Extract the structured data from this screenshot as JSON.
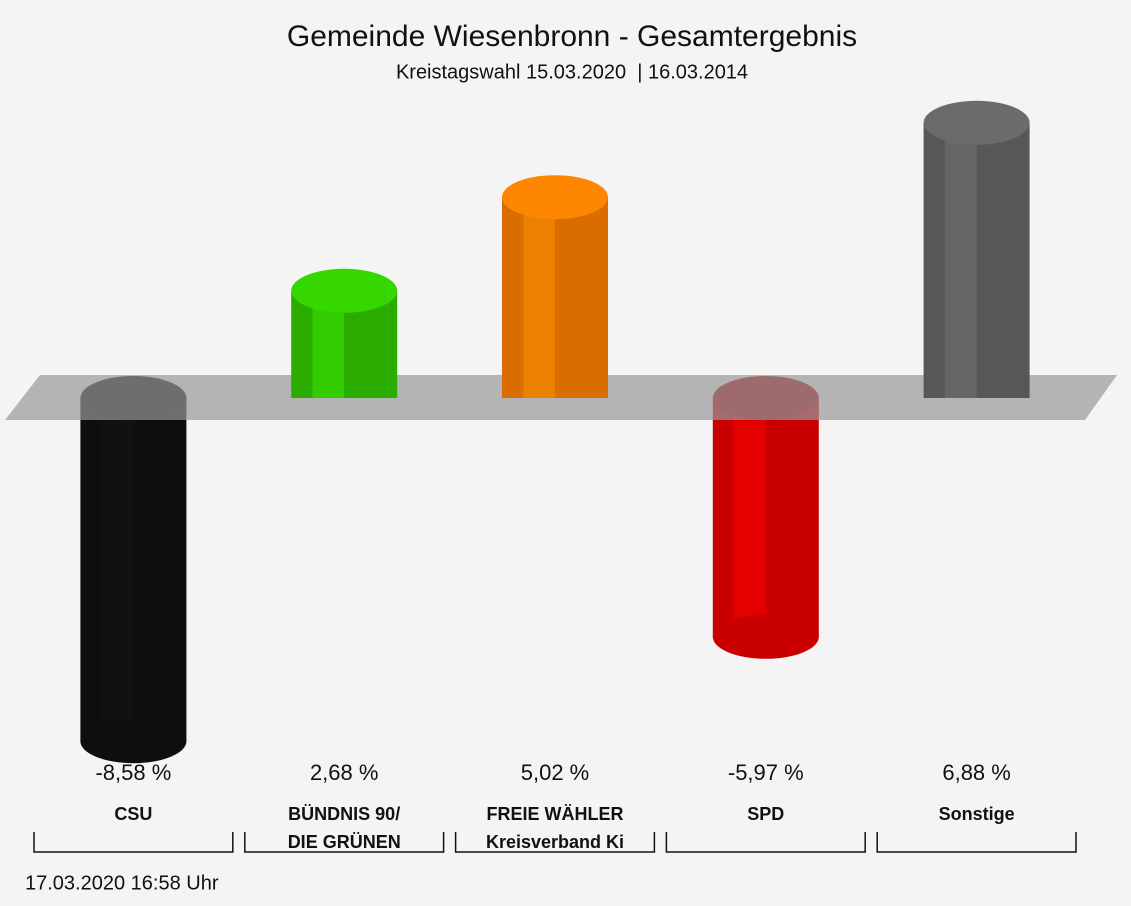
{
  "chart_data": {
    "type": "bar",
    "title": "Gemeinde Wiesenbronn - Gesamtergebnis",
    "subtitle": "Kreistagswahl 15.03.2020  | 16.03.2014",
    "categories": [
      [
        "CSU"
      ],
      [
        "BÜNDNIS 90/",
        "DIE GRÜNEN"
      ],
      [
        "FREIE WÄHLER",
        "Kreisverband Ki"
      ],
      [
        "SPD"
      ],
      [
        "Sonstige"
      ]
    ],
    "values": [
      -8.58,
      2.68,
      5.02,
      -5.97,
      6.88
    ],
    "value_labels": [
      "-8,58 %",
      "2,68 %",
      "5,02 %",
      "-5,97 %",
      "6,88 %"
    ],
    "colors": [
      "#111111",
      "#33cc00",
      "#ff8000",
      "#ee0000",
      "#666666"
    ],
    "footnote": "17.03.2020 16:58 Uhr"
  }
}
